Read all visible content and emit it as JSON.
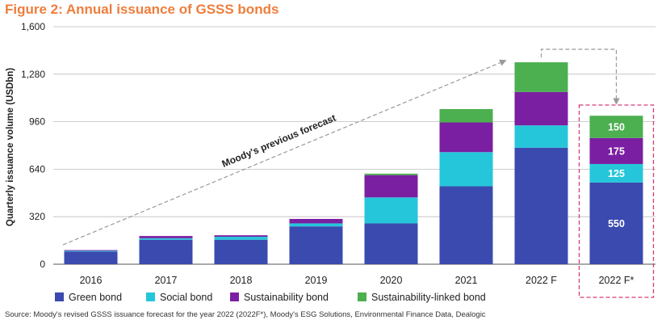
{
  "title": "Figure 2: Annual issuance of GSSS bonds",
  "source": "Source: Moody's revised GSSS issuance forecast for the year 2022 (2022F*), Moody's ESG Solutions, Environmental Finance Data, Dealogic",
  "colors": {
    "title": "#ef7d3c",
    "green_bond": "#3b4aae",
    "social_bond": "#26c6da",
    "sustainability_bond": "#7b1fa2",
    "sustainability_linked_bond": "#4caf50",
    "forecast_box": "#d63a7a",
    "arrow": "#999999"
  },
  "chart_data": {
    "type": "bar",
    "stacked": true,
    "ylabel": "Quarterly issuance volume (USDbn)",
    "ylim": [
      0,
      1600
    ],
    "yticks": [
      0,
      320,
      640,
      960,
      1280,
      1600
    ],
    "grid": true,
    "legend_position": "bottom",
    "categories": [
      "2016",
      "2017",
      "2018",
      "2019",
      "2020",
      "2021",
      "2022 F",
      "2022 F*"
    ],
    "series": [
      {
        "name": "Green bond",
        "color": "#3b4aae",
        "values": [
          85,
          165,
          165,
          255,
          275,
          525,
          785,
          550
        ]
      },
      {
        "name": "Social bond",
        "color": "#26c6da",
        "values": [
          5,
          10,
          20,
          20,
          175,
          230,
          150,
          125
        ]
      },
      {
        "name": "Sustainability bond",
        "color": "#7b1fa2",
        "values": [
          5,
          15,
          10,
          30,
          150,
          200,
          225,
          175
        ]
      },
      {
        "name": "Sustainability-linked bond",
        "color": "#4caf50",
        "values": [
          0,
          0,
          0,
          0,
          10,
          90,
          200,
          150
        ]
      }
    ],
    "data_labels": {
      "category": "2022 F*",
      "values": [
        "550",
        "125",
        "175",
        "150"
      ]
    },
    "annotation": "Moody's previous forecast",
    "highlight_category": "2022 F*"
  }
}
